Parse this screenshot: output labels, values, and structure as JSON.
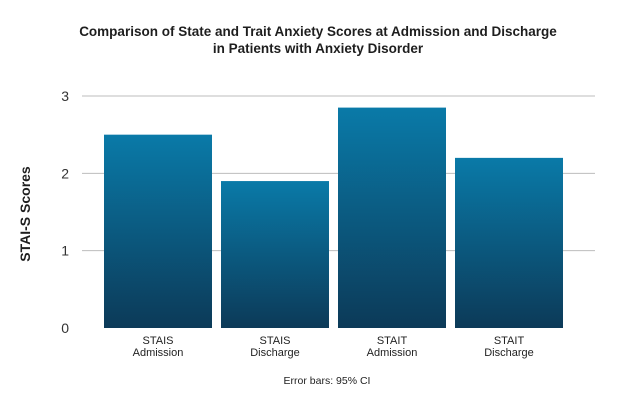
{
  "chart_data": {
    "type": "bar",
    "title_lines": [
      "Comparison of State and Trait Anxiety Scores at Admission and Discharge",
      "in Patients with Anxiety Disorder"
    ],
    "xlabel": "",
    "ylabel": "STAI-S Scores",
    "ylim": [
      0,
      3
    ],
    "yticks": [
      0,
      1,
      2,
      3
    ],
    "grid": true,
    "categories": [
      [
        "STAIS",
        "Admission"
      ],
      [
        "STAIS",
        "Discharge"
      ],
      [
        "STAIT",
        "Admission"
      ],
      [
        "STAIT",
        "Discharge"
      ]
    ],
    "values": [
      2.5,
      1.9,
      2.85,
      2.2
    ],
    "annotation": "Error bars: 95% CI",
    "colors": {
      "bar_top": "#0a7aa8",
      "bar_bottom": "#0c3a58",
      "grid": "#bdbdbd"
    }
  }
}
